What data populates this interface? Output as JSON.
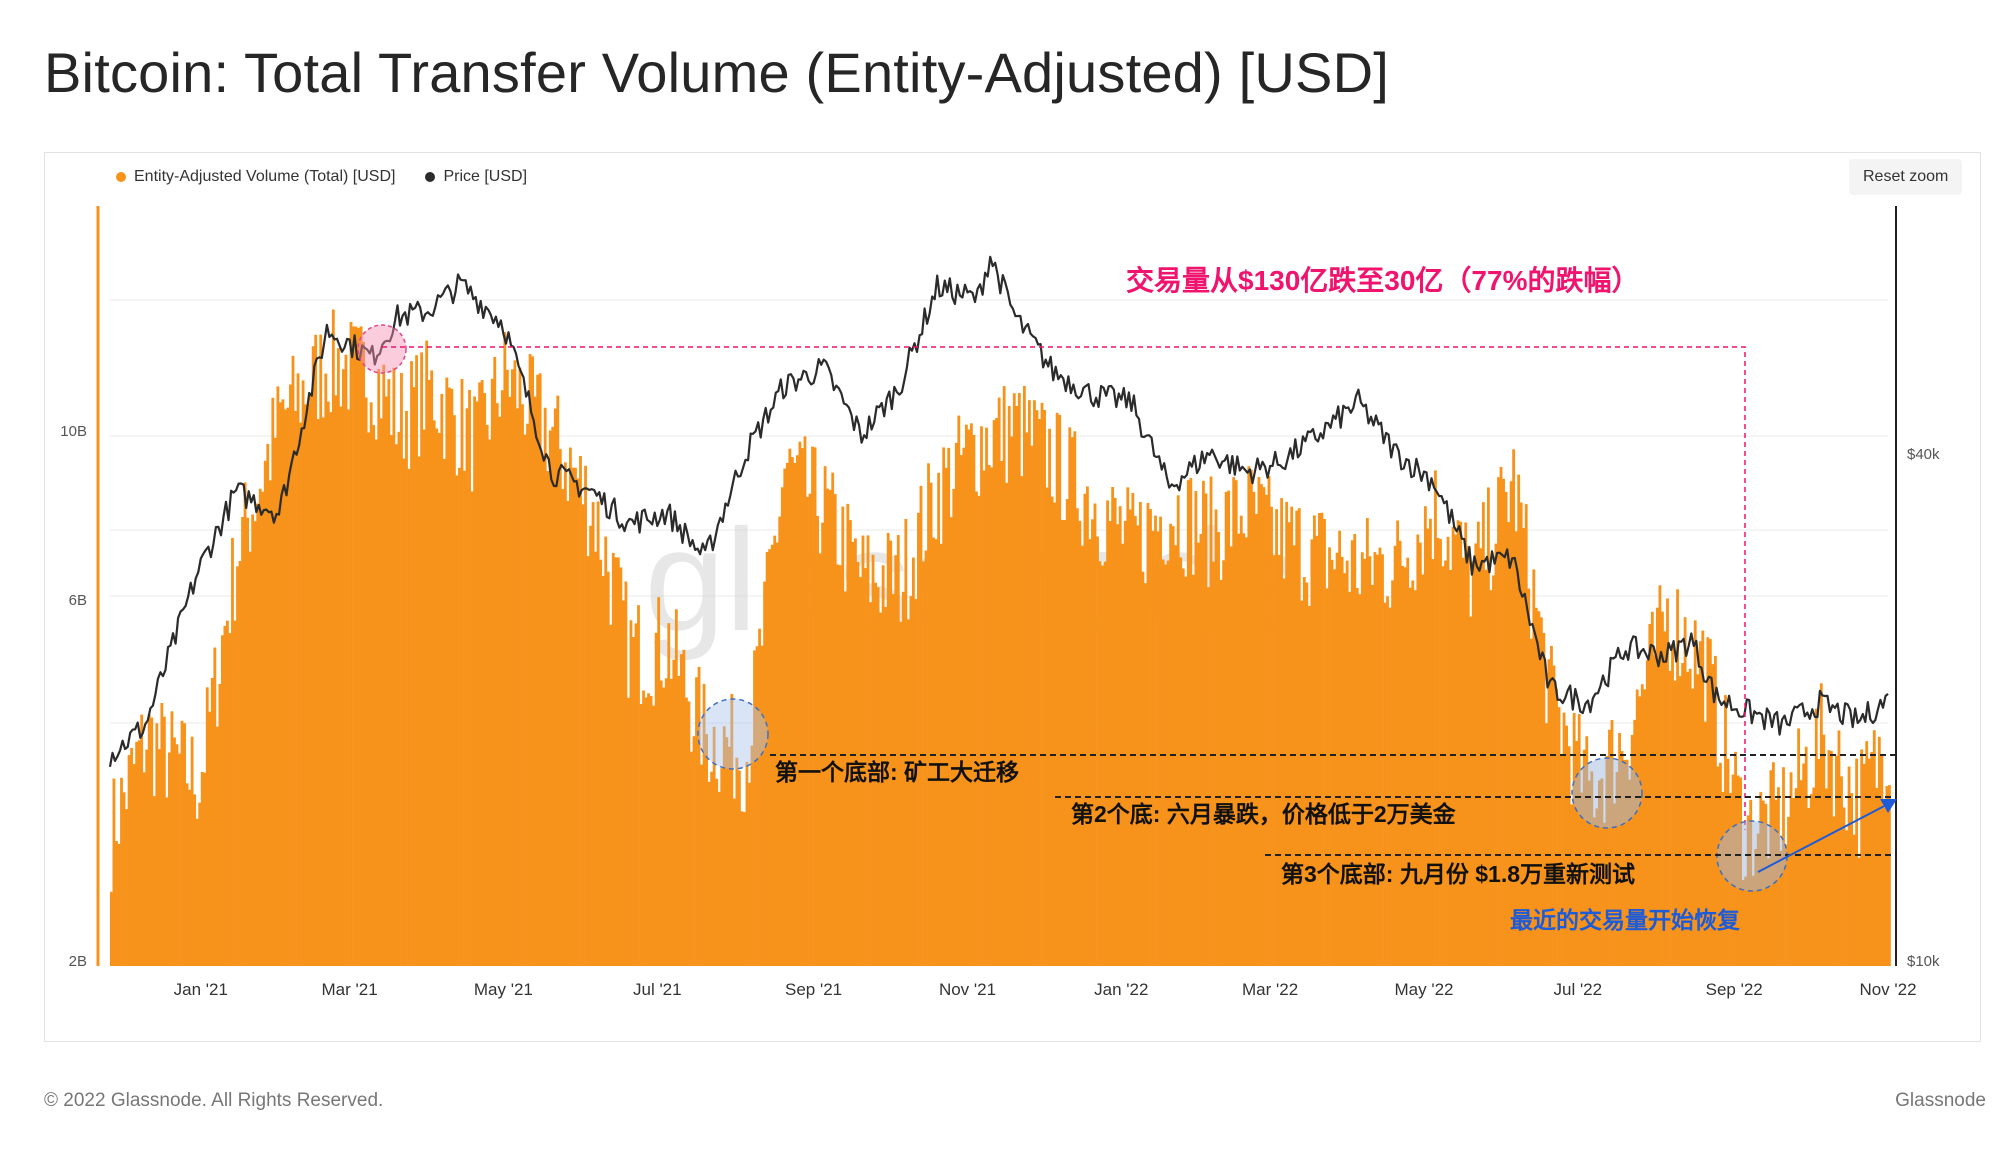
{
  "page": {
    "title": "Bitcoin: Total Transfer Volume (Entity-Adjusted) [USD]",
    "reset_zoom": "Reset zoom",
    "watermark": "glassnode",
    "footer_copyright": "© 2022 Glassnode. All Rights Reserved.",
    "footer_brand": "Glassnode"
  },
  "colors": {
    "volume": "#F7931A",
    "price": "#2b2b2b",
    "annotation_red": "#f0146e",
    "annotation_blue": "#1e5bd8",
    "grid": "#e9e9e9"
  },
  "chart_data": {
    "type": "bar",
    "scale": "log",
    "legend": [
      {
        "name": "Entity-Adjusted Volume (Total) [USD]",
        "color": "#F7931A"
      },
      {
        "name": "Price [USD]",
        "color": "#2b2b2b"
      }
    ],
    "x_start": "2020-11-26",
    "x_end": "2022-11-01",
    "x_ticks": [
      "Jan '21",
      "Mar '21",
      "May '21",
      "Jul '21",
      "Sep '21",
      "Nov '21",
      "Jan '22",
      "Mar '22",
      "May '22",
      "Jul '22",
      "Sep '22",
      "Nov '22"
    ],
    "y_left_ticks": [
      "10B",
      "6B",
      "2B"
    ],
    "y_right_ticks": [
      "$40k",
      "$10k"
    ],
    "series": [
      {
        "name": "Entity-Adjusted Volume (Total) [USD]",
        "x": [
          "2020-11-26",
          "2020-12-10",
          "2020-12-31",
          "2021-01-15",
          "2021-02-01",
          "2021-02-20",
          "2021-03-10",
          "2021-03-20",
          "2021-04-01",
          "2021-04-20",
          "2021-05-01",
          "2021-05-20",
          "2021-06-05",
          "2021-06-20",
          "2021-07-05",
          "2021-07-20",
          "2021-08-05",
          "2021-08-20",
          "2021-09-05",
          "2021-09-20",
          "2021-10-05",
          "2021-10-20",
          "2021-11-05",
          "2021-11-20",
          "2021-12-05",
          "2021-12-20",
          "2022-01-05",
          "2022-01-20",
          "2022-02-05",
          "2022-02-20",
          "2022-03-05",
          "2022-03-20",
          "2022-04-05",
          "2022-04-20",
          "2022-05-05",
          "2022-05-20",
          "2022-06-05",
          "2022-06-20",
          "2022-07-05",
          "2022-07-20",
          "2022-08-05",
          "2022-08-20",
          "2022-09-05",
          "2022-09-20",
          "2022-10-05",
          "2022-10-20",
          "2022-11-01"
        ],
        "values": [
          3.0,
          4.0,
          3.5,
          7.0,
          10.5,
          12.5,
          12.0,
          10.5,
          11.5,
          9.8,
          12.0,
          10.0,
          8.0,
          5.2,
          5.3,
          4.0,
          3.8,
          9.0,
          8.0,
          6.5,
          6.5,
          8.5,
          9.8,
          10.3,
          9.3,
          8.2,
          7.2,
          8.0,
          7.5,
          8.0,
          7.3,
          7.0,
          6.7,
          6.8,
          8.0,
          6.5,
          8.7,
          4.5,
          3.4,
          4.0,
          5.8,
          5.0,
          3.0,
          3.2,
          4.0,
          3.3,
          4.0
        ]
      },
      {
        "name": "Price [USD]",
        "x": [
          "2020-11-26",
          "2020-12-10",
          "2020-12-31",
          "2021-01-15",
          "2021-02-01",
          "2021-02-20",
          "2021-03-10",
          "2021-03-20",
          "2021-04-01",
          "2021-04-14",
          "2021-05-01",
          "2021-05-20",
          "2021-06-05",
          "2021-06-20",
          "2021-07-05",
          "2021-07-20",
          "2021-08-05",
          "2021-08-20",
          "2021-09-05",
          "2021-09-20",
          "2021-10-05",
          "2021-10-20",
          "2021-11-05",
          "2021-11-10",
          "2021-11-20",
          "2021-12-05",
          "2021-12-20",
          "2022-01-05",
          "2022-01-20",
          "2022-02-05",
          "2022-02-20",
          "2022-03-05",
          "2022-03-20",
          "2022-04-05",
          "2022-04-20",
          "2022-05-05",
          "2022-05-20",
          "2022-06-05",
          "2022-06-20",
          "2022-07-05",
          "2022-07-20",
          "2022-08-05",
          "2022-08-15",
          "2022-08-25",
          "2022-09-05",
          "2022-09-20",
          "2022-10-05",
          "2022-10-20",
          "2022-11-01"
        ],
        "values": [
          17500,
          19000,
          29000,
          36000,
          34000,
          56000,
          52000,
          58000,
          59000,
          63500,
          57000,
          38000,
          36000,
          33000,
          34000,
          30000,
          40000,
          48000,
          50500,
          42000,
          48000,
          63000,
          61000,
          68500,
          58000,
          50000,
          47000,
          46000,
          36500,
          40000,
          38000,
          39000,
          42000,
          46000,
          40000,
          37000,
          29500,
          30000,
          21000,
          20200,
          23500,
          23000,
          24000,
          20500,
          19800,
          19000,
          20200,
          19200,
          20400
        ]
      }
    ]
  },
  "annotations": {
    "headline": "交易量从$130亿跌至30亿（77%的跌幅）",
    "bottom1": "第一个底部: 矿工大迁移",
    "bottom2": "第2个底: 六月暴跌，价格低于2万美金",
    "bottom3": "第3个底部: 九月份 $1.8万重新测试",
    "recovery": "最近的交易量开始恢复"
  }
}
